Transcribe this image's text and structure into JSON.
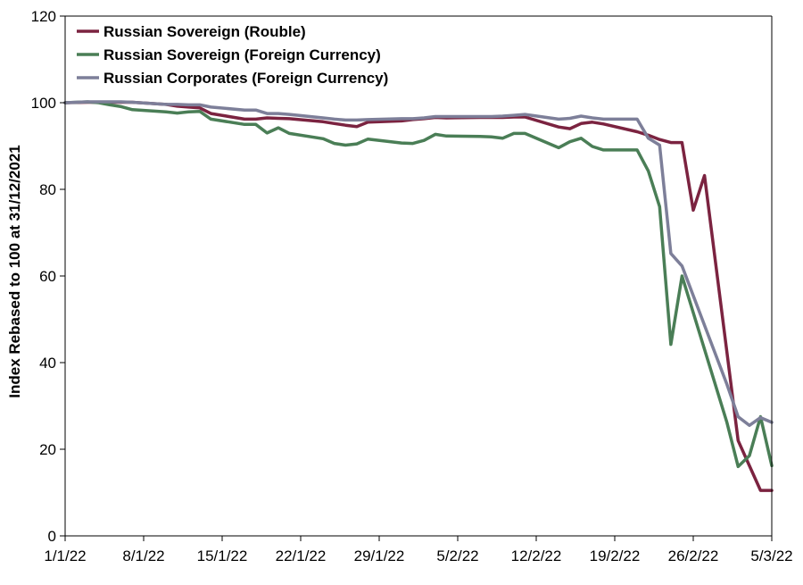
{
  "chart_data": {
    "type": "line",
    "title": "",
    "xlabel": "",
    "ylabel": "Index Rebased to 100 at 31/12/2021",
    "ylim": [
      0,
      120
    ],
    "yticks": [
      0,
      20,
      40,
      60,
      80,
      100,
      120
    ],
    "xlim": [
      "2022-01-01",
      "2022-03-05"
    ],
    "xticks": [
      "2022-01-01",
      "2022-01-08",
      "2022-01-15",
      "2022-01-22",
      "2022-01-29",
      "2022-02-05",
      "2022-02-12",
      "2022-02-19",
      "2022-02-26",
      "2022-03-05"
    ],
    "xtick_labels": [
      "1/1/22",
      "8/1/22",
      "15/1/22",
      "22/1/22",
      "29/1/22",
      "5/2/22",
      "12/2/22",
      "19/2/22",
      "26/2/22",
      "5/3/22"
    ],
    "grid": false,
    "legend_position": "top-left",
    "series": [
      {
        "name": "Russian Sovereign (Rouble)",
        "color": "#7B2340",
        "points": [
          [
            "2022-01-01",
            100
          ],
          [
            "2022-01-03",
            100.1
          ],
          [
            "2022-01-04",
            100.1
          ],
          [
            "2022-01-05",
            100.1
          ],
          [
            "2022-01-06",
            100.1
          ],
          [
            "2022-01-07",
            100.1
          ],
          [
            "2022-01-10",
            99.6
          ],
          [
            "2022-01-11",
            99.2
          ],
          [
            "2022-01-12",
            99
          ],
          [
            "2022-01-13",
            98.8
          ],
          [
            "2022-01-14",
            97.5
          ],
          [
            "2022-01-17",
            96.2
          ],
          [
            "2022-01-18",
            96.2
          ],
          [
            "2022-01-19",
            96.5
          ],
          [
            "2022-01-20",
            96.4
          ],
          [
            "2022-01-21",
            96.3
          ],
          [
            "2022-01-24",
            95.6
          ],
          [
            "2022-01-25",
            95.2
          ],
          [
            "2022-01-26",
            94.8
          ],
          [
            "2022-01-27",
            94.5
          ],
          [
            "2022-01-28",
            95.5
          ],
          [
            "2022-01-31",
            95.8
          ],
          [
            "2022-02-01",
            96.1
          ],
          [
            "2022-02-02",
            96.3
          ],
          [
            "2022-02-03",
            96.6
          ],
          [
            "2022-02-04",
            96.5
          ],
          [
            "2022-02-07",
            96.6
          ],
          [
            "2022-02-08",
            96.6
          ],
          [
            "2022-02-09",
            96.6
          ],
          [
            "2022-02-10",
            96.7
          ],
          [
            "2022-02-11",
            96.7
          ],
          [
            "2022-02-14",
            94.4
          ],
          [
            "2022-02-15",
            94
          ],
          [
            "2022-02-16",
            95.2
          ],
          [
            "2022-02-17",
            95.5
          ],
          [
            "2022-02-18",
            95.1
          ],
          [
            "2022-02-21",
            93.3
          ],
          [
            "2022-02-22",
            92.5
          ],
          [
            "2022-02-23",
            91.5
          ],
          [
            "2022-02-24",
            90.8
          ],
          [
            "2022-02-25",
            90.8
          ],
          [
            "2022-02-26",
            75.2
          ],
          [
            "2022-02-27",
            83.2
          ],
          [
            "2022-03-02",
            22
          ],
          [
            "2022-03-03",
            16.2
          ],
          [
            "2022-03-04",
            10.5
          ],
          [
            "2022-03-05",
            10.5
          ]
        ]
      },
      {
        "name": "Russian Sovereign (Foreign Currency)",
        "color": "#4A7E56",
        "points": [
          [
            "2022-01-01",
            100
          ],
          [
            "2022-01-03",
            100.2
          ],
          [
            "2022-01-04",
            100
          ],
          [
            "2022-01-05",
            99.5
          ],
          [
            "2022-01-06",
            99.1
          ],
          [
            "2022-01-07",
            98.4
          ],
          [
            "2022-01-10",
            97.9
          ],
          [
            "2022-01-11",
            97.6
          ],
          [
            "2022-01-12",
            97.9
          ],
          [
            "2022-01-13",
            98
          ],
          [
            "2022-01-14",
            96.2
          ],
          [
            "2022-01-17",
            95
          ],
          [
            "2022-01-18",
            95
          ],
          [
            "2022-01-19",
            93
          ],
          [
            "2022-01-20",
            94.2
          ],
          [
            "2022-01-21",
            92.9
          ],
          [
            "2022-01-24",
            91.7
          ],
          [
            "2022-01-25",
            90.6
          ],
          [
            "2022-01-26",
            90.2
          ],
          [
            "2022-01-27",
            90.5
          ],
          [
            "2022-01-28",
            91.6
          ],
          [
            "2022-01-31",
            90.7
          ],
          [
            "2022-02-01",
            90.6
          ],
          [
            "2022-02-02",
            91.3
          ],
          [
            "2022-02-03",
            92.7
          ],
          [
            "2022-02-04",
            92.3
          ],
          [
            "2022-02-07",
            92.2
          ],
          [
            "2022-02-08",
            92.1
          ],
          [
            "2022-02-09",
            91.8
          ],
          [
            "2022-02-10",
            92.9
          ],
          [
            "2022-02-11",
            92.9
          ],
          [
            "2022-02-14",
            89.6
          ],
          [
            "2022-02-15",
            91
          ],
          [
            "2022-02-16",
            91.8
          ],
          [
            "2022-02-17",
            89.9
          ],
          [
            "2022-02-18",
            89.1
          ],
          [
            "2022-02-21",
            89.1
          ],
          [
            "2022-02-22",
            84.2
          ],
          [
            "2022-02-23",
            76
          ],
          [
            "2022-02-24",
            44.2
          ],
          [
            "2022-02-25",
            60
          ],
          [
            "2022-03-01",
            26.2
          ],
          [
            "2022-03-02",
            16
          ],
          [
            "2022-03-03",
            18.5
          ],
          [
            "2022-03-04",
            27.5
          ],
          [
            "2022-03-05",
            16.2
          ]
        ]
      },
      {
        "name": "Russian Corporates (Foreign Currency)",
        "color": "#7D7F99",
        "points": [
          [
            "2022-01-01",
            100
          ],
          [
            "2022-01-03",
            100.2
          ],
          [
            "2022-01-04",
            100.2
          ],
          [
            "2022-01-05",
            100.2
          ],
          [
            "2022-01-06",
            100.2
          ],
          [
            "2022-01-07",
            100.1
          ],
          [
            "2022-01-10",
            99.6
          ],
          [
            "2022-01-11",
            99.6
          ],
          [
            "2022-01-12",
            99.5
          ],
          [
            "2022-01-13",
            99.5
          ],
          [
            "2022-01-14",
            99
          ],
          [
            "2022-01-17",
            98.3
          ],
          [
            "2022-01-18",
            98.3
          ],
          [
            "2022-01-19",
            97.5
          ],
          [
            "2022-01-20",
            97.5
          ],
          [
            "2022-01-21",
            97.3
          ],
          [
            "2022-01-24",
            96.5
          ],
          [
            "2022-01-25",
            96.2
          ],
          [
            "2022-01-26",
            96
          ],
          [
            "2022-01-27",
            96
          ],
          [
            "2022-01-28",
            96.1
          ],
          [
            "2022-01-31",
            96.3
          ],
          [
            "2022-02-01",
            96.3
          ],
          [
            "2022-02-02",
            96.5
          ],
          [
            "2022-02-03",
            96.8
          ],
          [
            "2022-02-04",
            96.8
          ],
          [
            "2022-02-07",
            96.8
          ],
          [
            "2022-02-08",
            96.8
          ],
          [
            "2022-02-09",
            96.9
          ],
          [
            "2022-02-10",
            97.1
          ],
          [
            "2022-02-11",
            97.3
          ],
          [
            "2022-02-14",
            96.2
          ],
          [
            "2022-02-15",
            96.4
          ],
          [
            "2022-02-16",
            96.9
          ],
          [
            "2022-02-17",
            96.5
          ],
          [
            "2022-02-18",
            96.2
          ],
          [
            "2022-02-21",
            96.2
          ],
          [
            "2022-02-22",
            91.8
          ],
          [
            "2022-02-23",
            90.2
          ],
          [
            "2022-02-24",
            65.2
          ],
          [
            "2022-02-25",
            62.3
          ],
          [
            "2022-03-01",
            35
          ],
          [
            "2022-03-02",
            27.5
          ],
          [
            "2022-03-03",
            25.5
          ],
          [
            "2022-03-04",
            27.3
          ],
          [
            "2022-03-05",
            26.2
          ]
        ]
      }
    ]
  }
}
